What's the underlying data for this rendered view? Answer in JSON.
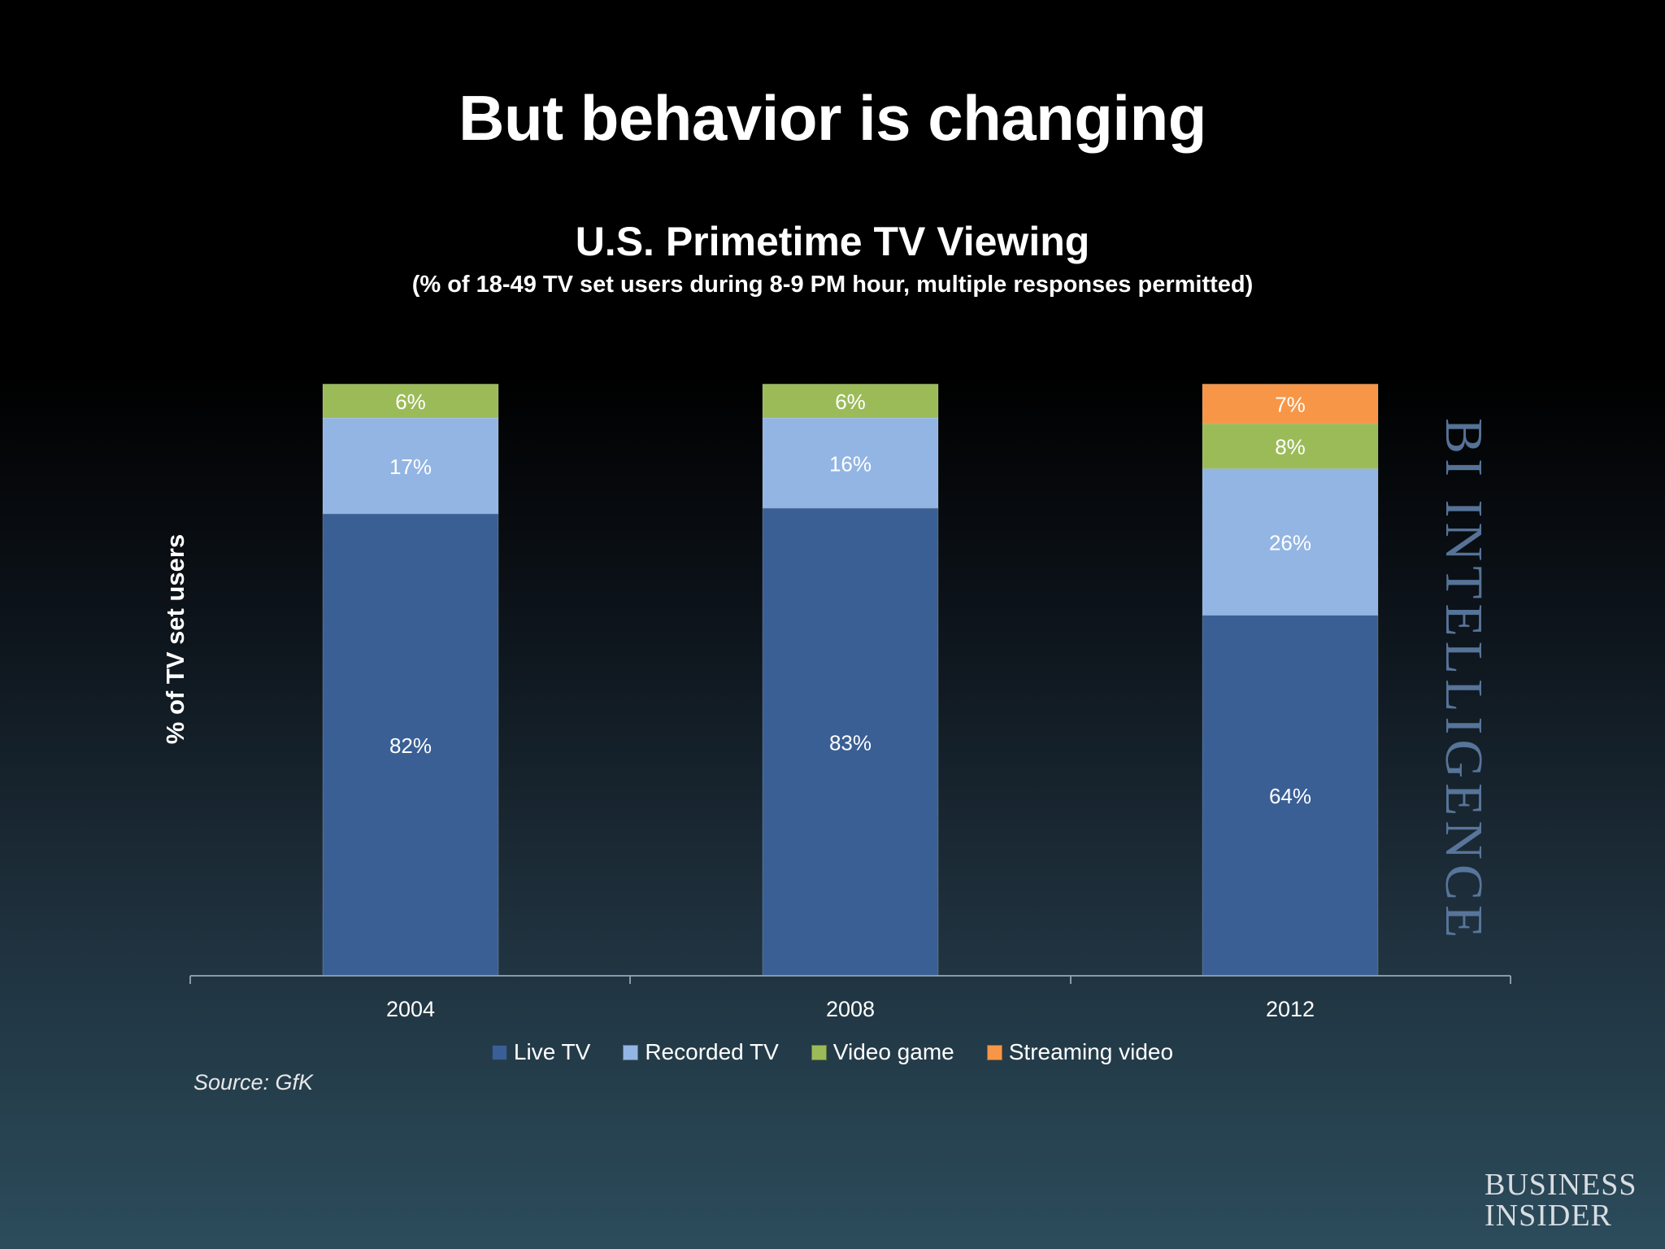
{
  "slide": {
    "title": "But behavior is changing",
    "source": "Source: GfK",
    "watermark": "BI INTELLIGENCE",
    "logo_line1": "BUSINESS",
    "logo_line2": "INSIDER"
  },
  "colors": {
    "live_tv": "#3a5f95",
    "recorded_tv": "#93b5e3",
    "video_game": "#9bbb59",
    "streaming_video": "#f79646"
  },
  "chart_data": {
    "type": "bar",
    "stacked": true,
    "title": "U.S. Primetime TV Viewing",
    "subtitle": "(% of 18-49 TV set users during 8-9 PM hour, multiple responses permitted)",
    "xlabel": "",
    "ylabel": "% of TV set users",
    "categories": [
      "2004",
      "2008",
      "2012"
    ],
    "series": [
      {
        "name": "Live TV",
        "values": [
          82,
          83,
          64
        ],
        "labels": [
          "82%",
          "83%",
          "64%"
        ],
        "color": "#3a5f95"
      },
      {
        "name": "Recorded TV",
        "values": [
          17,
          16,
          26
        ],
        "labels": [
          "17%",
          "16%",
          "26%"
        ],
        "color": "#93b5e3"
      },
      {
        "name": "Video game",
        "values": [
          6,
          6,
          8
        ],
        "labels": [
          "6%",
          "6%",
          "8%"
        ],
        "color": "#9bbb59"
      },
      {
        "name": "Streaming video",
        "values": [
          0,
          0,
          7
        ],
        "labels": [
          "",
          "",
          "7%"
        ],
        "color": "#f79646"
      }
    ],
    "legend_position": "bottom",
    "grid": false,
    "y_axis_visible": false
  }
}
